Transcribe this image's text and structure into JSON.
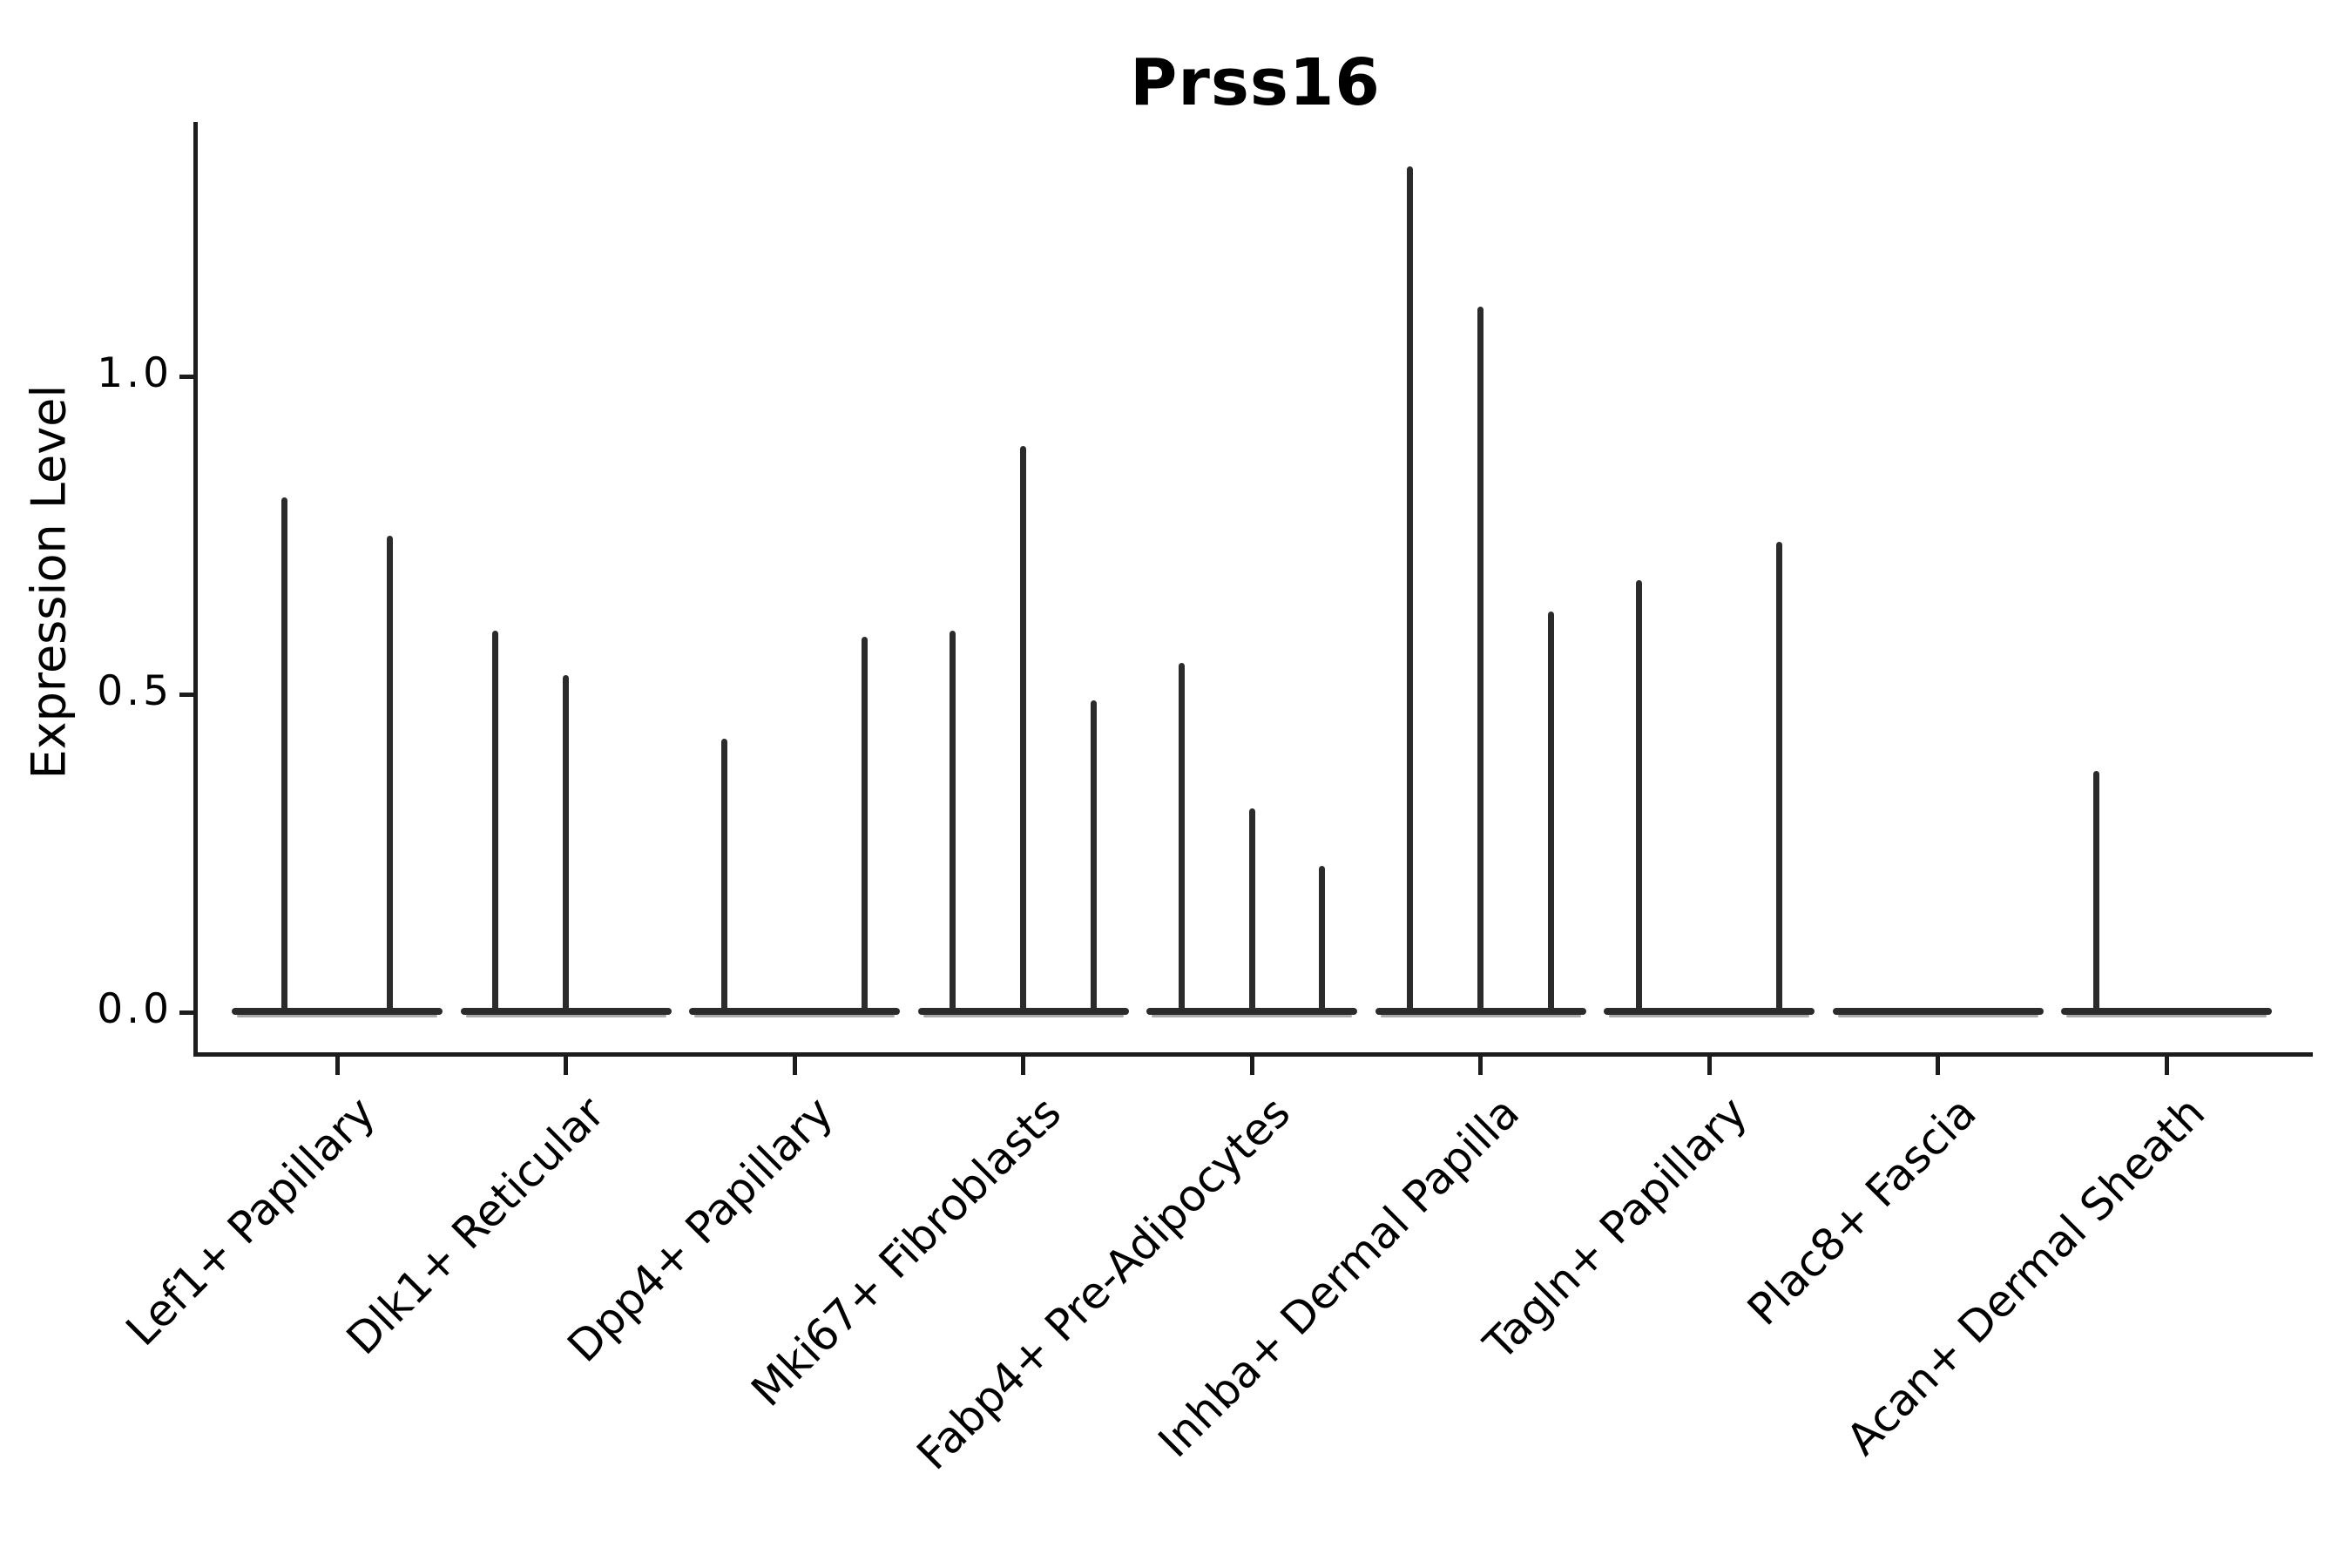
{
  "header": {
    "title": "Prss16"
  },
  "chart_data": {
    "type": "violin",
    "title": "Prss16",
    "xlabel": "",
    "ylabel": "Expression Level",
    "ylim": [
      -0.07,
      1.4
    ],
    "yticks": [
      0.0,
      0.5,
      1.0
    ],
    "ytick_labels": [
      "0.0",
      "0.5",
      "1.0"
    ],
    "grid": false,
    "legend": "none",
    "x_tick_rotation_deg": 45,
    "violin_shape": "sparse-expression spike: wide flat base at 0 with thin vertical peak rising to the max expression value; flat-only when all values are 0",
    "categories": [
      "Lef1+ Papillary",
      "Dlk1+ Reticular",
      "Dpp4+ Papillary",
      "Mki67+ Fibroblasts",
      "Fabp4+ Pre-Adipocytes",
      "Inhba+ Dermal Papilla",
      "Tagln+ Papillary",
      "Plac8+ Fascia",
      "Acan+ Dermal Sheath"
    ],
    "groups": [
      {
        "label": "Lef1+ Papillary",
        "violin_max_values": [
          0.81,
          0.75
        ]
      },
      {
        "label": "Dlk1+ Reticular",
        "violin_max_values": [
          0.6,
          0.53,
          0
        ]
      },
      {
        "label": "Dpp4+ Papillary",
        "violin_max_values": [
          0.43,
          0,
          0.59
        ]
      },
      {
        "label": "Mki67+ Fibroblasts",
        "violin_max_values": [
          0.6,
          0.89,
          0.49
        ]
      },
      {
        "label": "Fabp4+ Pre-Adipocytes",
        "violin_max_values": [
          0.55,
          0.32,
          0.23
        ]
      },
      {
        "label": "Inhba+ Dermal Papilla",
        "violin_max_values": [
          1.33,
          1.11,
          0.63
        ]
      },
      {
        "label": "Tagln+ Papillary",
        "violin_max_values": [
          0.68,
          0,
          0.74
        ]
      },
      {
        "label": "Plac8+ Fascia",
        "violin_max_values": [
          0,
          0,
          0
        ]
      },
      {
        "label": "Acan+ Dermal Sheath",
        "violin_max_values": [
          0.38,
          0,
          0
        ]
      }
    ],
    "colors": {
      "violin": "#2b2b2b",
      "baseline_shadow": "#ababab",
      "axis": "#1c1c1c",
      "text": "#000000",
      "background": "#ffffff"
    }
  }
}
